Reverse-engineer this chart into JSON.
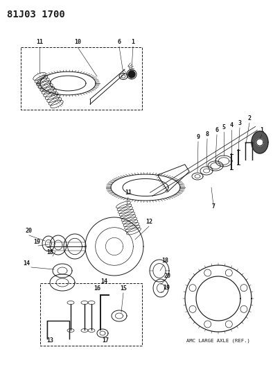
{
  "title": "81J03 1700",
  "bg_color": "#ffffff",
  "line_color": "#1a1a1a",
  "amc_label": "AMC LARGE AXLE (REF.)",
  "title_fontsize": 10,
  "label_fontsize": 6.0,
  "small_label_fontsize": 5.5
}
